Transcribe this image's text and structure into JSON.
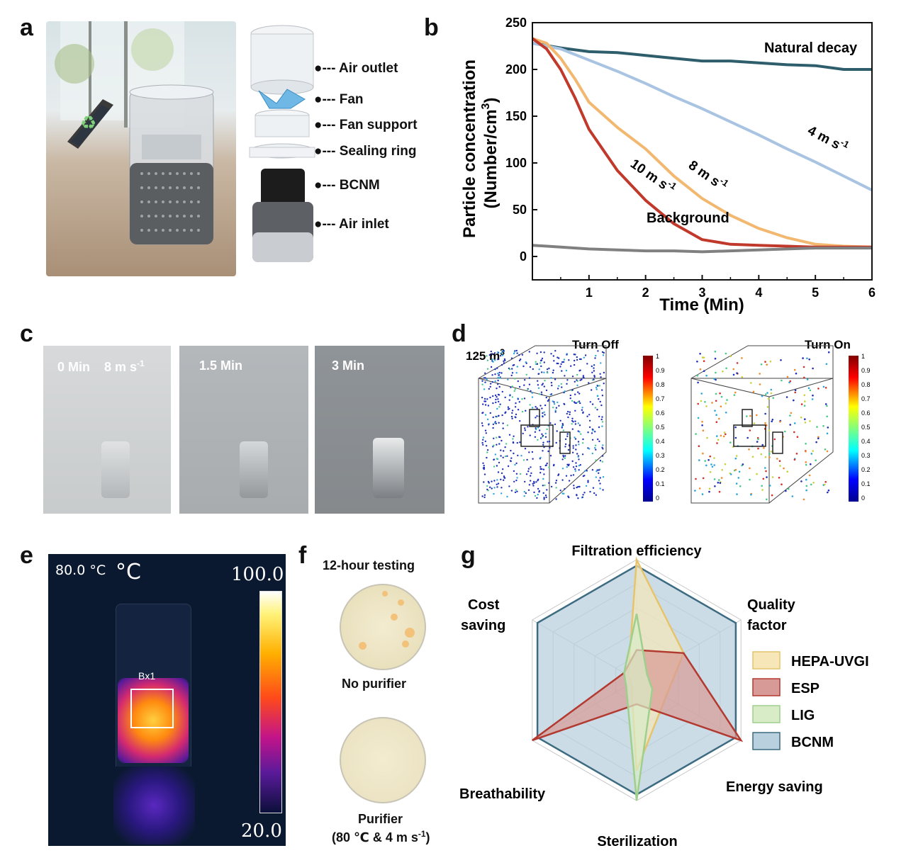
{
  "panels": {
    "a": "a",
    "b": "b",
    "c": "c",
    "d": "d",
    "e": "e",
    "f": "f",
    "g": "g"
  },
  "panel_a": {
    "labels": [
      "Air outlet",
      "Fan",
      "Fan support",
      "Sealing ring",
      "BCNM",
      "Air inlet"
    ]
  },
  "chart_data": [
    {
      "type": "line",
      "panel": "b",
      "title": "",
      "xlabel": "Time (Min)",
      "ylabel_line1": "Particle concentration",
      "ylabel_line2": "(Number/cm",
      "ylabel_sup": "3",
      "ylabel_close": ")",
      "xlim": [
        0,
        6
      ],
      "ylim": [
        -25,
        250
      ],
      "xticks": [
        "1",
        "2",
        "3",
        "4",
        "5",
        "6"
      ],
      "yticks": [
        "0",
        "50",
        "100",
        "150",
        "200",
        "250"
      ],
      "series": [
        {
          "name": "Natural decay",
          "color": "#2e5d6b",
          "x": [
            0,
            0.5,
            1,
            1.5,
            2,
            2.5,
            3,
            3.5,
            4,
            4.5,
            5,
            5.5,
            6
          ],
          "y": [
            228,
            223,
            219,
            218,
            215,
            212,
            209,
            209,
            207,
            205,
            204,
            200,
            200
          ]
        },
        {
          "name": "4 m s-1",
          "color": "#a8c4e2",
          "x": [
            0,
            0.5,
            1,
            1.5,
            2,
            2.5,
            3,
            3.5,
            4,
            4.5,
            5,
            5.5,
            6
          ],
          "y": [
            228,
            222,
            210,
            198,
            185,
            171,
            158,
            144,
            130,
            115,
            101,
            86,
            71
          ]
        },
        {
          "name": "8 m s-1",
          "color": "#f2b870",
          "x": [
            0,
            0.25,
            0.5,
            0.75,
            1,
            1.5,
            2,
            2.5,
            3,
            3.5,
            4,
            4.5,
            5,
            5.5,
            6
          ],
          "y": [
            233,
            228,
            212,
            190,
            165,
            138,
            115,
            86,
            62,
            44,
            30,
            20,
            13,
            11,
            10
          ]
        },
        {
          "name": "10 m s-1",
          "color": "#c0392b",
          "x": [
            0,
            0.25,
            0.5,
            0.75,
            1,
            1.5,
            2,
            2.5,
            3,
            3.5,
            4,
            4.5,
            5,
            5.5,
            6
          ],
          "y": [
            233,
            222,
            200,
            170,
            136,
            92,
            60,
            35,
            18,
            13,
            12,
            11,
            10,
            10,
            10
          ]
        },
        {
          "name": "Background",
          "color": "#808080",
          "x": [
            0,
            0.5,
            1,
            1.5,
            2,
            2.5,
            3,
            3.5,
            4,
            4.5,
            5,
            5.5,
            6
          ],
          "y": [
            12,
            10,
            8,
            7,
            6,
            6,
            5,
            6,
            7,
            8,
            9,
            9,
            9
          ]
        }
      ],
      "annotations": {
        "natural": "Natural decay",
        "four": "4 m s",
        "eight": "8 m s",
        "ten": "10 m s",
        "background": "Background",
        "sup": "-1"
      }
    },
    {
      "type": "radar",
      "panel": "g",
      "axes": [
        "Filtration efficiency",
        "Quality factor",
        "Energy saving",
        "Sterilization",
        "Breathability",
        "Cost saving"
      ],
      "axis_label_lines": {
        "cost": [
          "Cost",
          "saving"
        ],
        "quality": [
          "Quality",
          "factor"
        ]
      },
      "series": [
        {
          "name": "HEPA-UVGI",
          "fill": "#f7e7b8",
          "stroke": "#e6c46b",
          "values": [
            1.0,
            0.45,
            0.28,
            0.75,
            0.05,
            0.08
          ]
        },
        {
          "name": "ESP",
          "fill": "#d89a96",
          "stroke": "#b23a30",
          "values": [
            0.25,
            0.45,
            1.0,
            0.2,
            1.0,
            0.12
          ]
        },
        {
          "name": "LIG",
          "fill": "#d8ecc8",
          "stroke": "#9fcf8c",
          "values": [
            0.55,
            0.1,
            0.15,
            1.0,
            0.1,
            0.12
          ]
        },
        {
          "name": "BCNM",
          "fill": "#b9d0de",
          "stroke": "#3d6b82",
          "values": [
            0.95,
            0.95,
            0.95,
            0.95,
            0.95,
            0.95
          ]
        }
      ]
    }
  ],
  "panel_c": {
    "frames": [
      {
        "time": "0 Min",
        "speed": "8 m s",
        "sup": "-1"
      },
      {
        "time": "1.5 Min"
      },
      {
        "time": "3 Min"
      }
    ]
  },
  "panel_d": {
    "volume": "125 m",
    "volume_sup": "3",
    "off": "Turn Off",
    "on": "Turn On",
    "colorbar_ticks": [
      "1",
      "0.9",
      "0.8",
      "0.7",
      "0.6",
      "0.5",
      "0.4",
      "0.3",
      "0.2",
      "0.1",
      "0"
    ]
  },
  "panel_e": {
    "temp_reading": "80.0 °C",
    "unit": "°C",
    "scale_max": "100.0",
    "scale_min": "20.0",
    "box_label": "Bx1"
  },
  "panel_f": {
    "title": "12-hour testing",
    "no_purifier": "No purifier",
    "purifier": "Purifier",
    "condition": "(80 ℃ & 4 m s",
    "condition_sup": "-1",
    "condition_close": ")"
  }
}
